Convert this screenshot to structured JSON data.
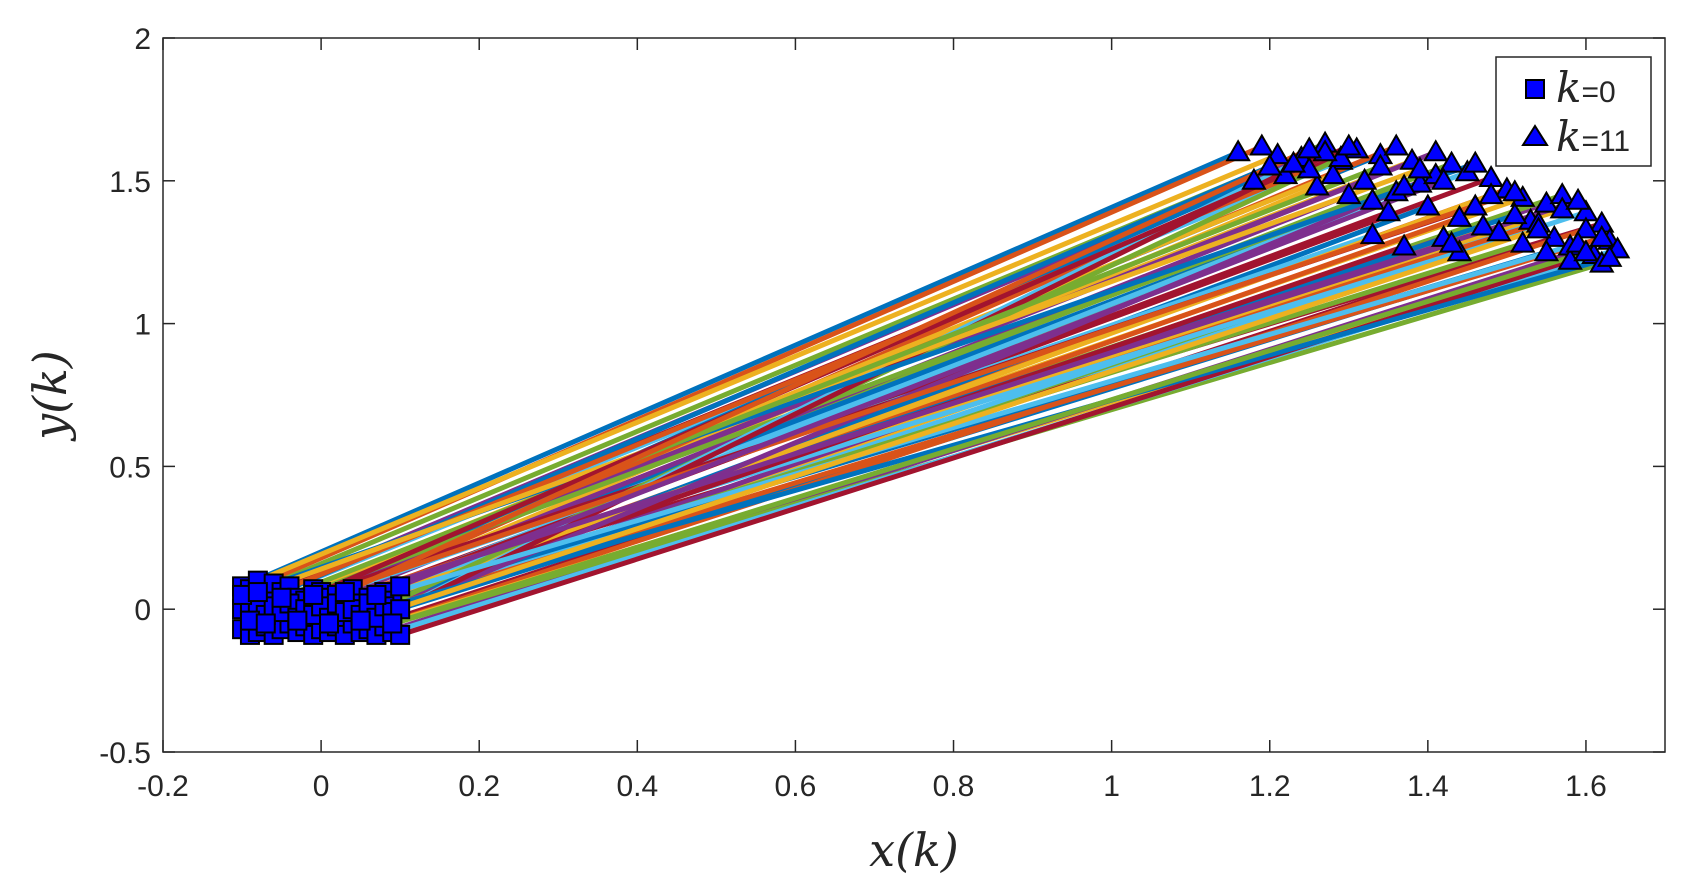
{
  "chart_data": {
    "type": "line",
    "title": "",
    "xlabel": "x(k)",
    "ylabel": "y(k)",
    "xlim": [
      -0.2,
      1.7
    ],
    "ylim": [
      -0.5,
      2
    ],
    "xticks": [
      "-0.2",
      "0",
      "0.2",
      "0.4",
      "0.6",
      "0.8",
      "1",
      "1.2",
      "1.4",
      "1.6"
    ],
    "yticks": [
      "-0.5",
      "0",
      "0.5",
      "1",
      "1.5",
      "2"
    ],
    "legend_position": "top-right",
    "legend": [
      {
        "marker": "square",
        "label_var": "k",
        "label_rest": "=0"
      },
      {
        "marker": "triangle",
        "label_var": "k",
        "label_rest": "=11"
      }
    ],
    "marker_color": "#0000ff",
    "series_colors": [
      "#0072bd",
      "#d95319",
      "#edb120",
      "#7e2f8e",
      "#77ac30",
      "#4dbeee",
      "#a2142f"
    ],
    "series": [
      {
        "start": [
          -0.1,
          0.08
        ],
        "end": [
          1.16,
          1.6
        ]
      },
      {
        "start": [
          -0.09,
          0.07
        ],
        "end": [
          1.19,
          1.62
        ]
      },
      {
        "start": [
          -0.08,
          0.1
        ],
        "end": [
          1.21,
          1.59
        ]
      },
      {
        "start": [
          -0.07,
          0.05
        ],
        "end": [
          1.24,
          1.58
        ]
      },
      {
        "start": [
          -0.06,
          0.09
        ],
        "end": [
          1.27,
          1.63
        ]
      },
      {
        "start": [
          -0.05,
          0.06
        ],
        "end": [
          1.29,
          1.57
        ]
      },
      {
        "start": [
          -0.04,
          0.08
        ],
        "end": [
          1.31,
          1.61
        ]
      },
      {
        "start": [
          -0.03,
          0.04
        ],
        "end": [
          1.34,
          1.59
        ]
      },
      {
        "start": [
          -0.02,
          0.03
        ],
        "end": [
          1.36,
          1.62
        ]
      },
      {
        "start": [
          -0.01,
          0.07
        ],
        "end": [
          1.38,
          1.57
        ]
      },
      {
        "start": [
          0.0,
          0.06
        ],
        "end": [
          1.41,
          1.6
        ]
      },
      {
        "start": [
          0.01,
          0.04
        ],
        "end": [
          1.43,
          1.56
        ]
      },
      {
        "start": [
          0.02,
          0.05
        ],
        "end": [
          1.45,
          1.53
        ]
      },
      {
        "start": [
          0.03,
          0.03
        ],
        "end": [
          1.48,
          1.51
        ]
      },
      {
        "start": [
          0.04,
          0.07
        ],
        "end": [
          1.39,
          1.49
        ]
      },
      {
        "start": [
          0.05,
          0.02
        ],
        "end": [
          1.5,
          1.47
        ]
      },
      {
        "start": [
          0.06,
          0.04
        ],
        "end": [
          1.52,
          1.44
        ]
      },
      {
        "start": [
          0.07,
          0.05
        ],
        "end": [
          1.55,
          1.42
        ]
      },
      {
        "start": [
          0.08,
          0.06
        ],
        "end": [
          1.57,
          1.45
        ]
      },
      {
        "start": [
          0.09,
          0.03
        ],
        "end": [
          1.6,
          1.39
        ]
      },
      {
        "start": [
          0.1,
          0.08
        ],
        "end": [
          1.62,
          1.35
        ]
      },
      {
        "start": [
          -0.1,
          -0.07
        ],
        "end": [
          1.18,
          1.5
        ]
      },
      {
        "start": [
          -0.09,
          -0.09
        ],
        "end": [
          1.22,
          1.52
        ]
      },
      {
        "start": [
          -0.08,
          -0.08
        ],
        "end": [
          1.26,
          1.48
        ]
      },
      {
        "start": [
          -0.07,
          -0.06
        ],
        "end": [
          1.3,
          1.45
        ]
      },
      {
        "start": [
          -0.06,
          -0.09
        ],
        "end": [
          1.33,
          1.43
        ]
      },
      {
        "start": [
          -0.05,
          -0.07
        ],
        "end": [
          1.36,
          1.46
        ]
      },
      {
        "start": [
          -0.04,
          -0.05
        ],
        "end": [
          1.35,
          1.39
        ]
      },
      {
        "start": [
          -0.03,
          -0.08
        ],
        "end": [
          1.4,
          1.41
        ]
      },
      {
        "start": [
          -0.02,
          -0.06
        ],
        "end": [
          1.44,
          1.37
        ]
      },
      {
        "start": [
          -0.01,
          -0.09
        ],
        "end": [
          1.47,
          1.34
        ]
      },
      {
        "start": [
          0.0,
          -0.07
        ],
        "end": [
          1.42,
          1.3
        ]
      },
      {
        "start": [
          0.01,
          -0.08
        ],
        "end": [
          1.49,
          1.32
        ]
      },
      {
        "start": [
          0.02,
          -0.06
        ],
        "end": [
          1.53,
          1.36
        ]
      },
      {
        "start": [
          0.03,
          -0.09
        ],
        "end": [
          1.56,
          1.3
        ]
      },
      {
        "start": [
          0.04,
          -0.05
        ],
        "end": [
          1.58,
          1.27
        ]
      },
      {
        "start": [
          0.05,
          -0.08
        ],
        "end": [
          1.6,
          1.33
        ]
      },
      {
        "start": [
          0.06,
          -0.07
        ],
        "end": [
          1.61,
          1.24
        ]
      },
      {
        "start": [
          0.07,
          -0.09
        ],
        "end": [
          1.63,
          1.29
        ]
      },
      {
        "start": [
          0.08,
          -0.06
        ],
        "end": [
          1.62,
          1.21
        ]
      },
      {
        "start": [
          0.09,
          -0.08
        ],
        "end": [
          1.64,
          1.26
        ]
      },
      {
        "start": [
          0.1,
          -0.09
        ],
        "end": [
          1.58,
          1.22
        ]
      },
      {
        "start": [
          -0.1,
          0.0
        ],
        "end": [
          1.2,
          1.55
        ]
      },
      {
        "start": [
          -0.09,
          0.02
        ],
        "end": [
          1.25,
          1.54
        ]
      },
      {
        "start": [
          -0.08,
          0.0
        ],
        "end": [
          1.28,
          1.52
        ]
      },
      {
        "start": [
          -0.07,
          -0.02
        ],
        "end": [
          1.32,
          1.5
        ]
      },
      {
        "start": [
          -0.06,
          0.01
        ],
        "end": [
          1.37,
          1.48
        ]
      },
      {
        "start": [
          -0.05,
          -0.01
        ],
        "end": [
          1.33,
          1.31
        ]
      },
      {
        "start": [
          -0.04,
          0.02
        ],
        "end": [
          1.46,
          1.41
        ]
      },
      {
        "start": [
          -0.03,
          -0.03
        ],
        "end": [
          1.51,
          1.38
        ]
      },
      {
        "start": [
          -0.02,
          0.0
        ],
        "end": [
          1.54,
          1.35
        ]
      },
      {
        "start": [
          -0.01,
          -0.02
        ],
        "end": [
          1.57,
          1.4
        ]
      },
      {
        "start": [
          0.0,
          0.01
        ],
        "end": [
          1.59,
          1.43
        ]
      },
      {
        "start": [
          0.01,
          -0.03
        ],
        "end": [
          1.52,
          1.28
        ]
      },
      {
        "start": [
          0.02,
          0.02
        ],
        "end": [
          1.44,
          1.25
        ]
      },
      {
        "start": [
          0.03,
          -0.01
        ],
        "end": [
          1.37,
          1.27
        ]
      },
      {
        "start": [
          0.04,
          0.0
        ],
        "end": [
          1.55,
          1.25
        ]
      },
      {
        "start": [
          0.05,
          -0.02
        ],
        "end": [
          1.62,
          1.3
        ]
      },
      {
        "start": [
          0.06,
          0.02
        ],
        "end": [
          1.48,
          1.45
        ]
      },
      {
        "start": [
          0.07,
          -0.03
        ],
        "end": [
          1.41,
          1.52
        ]
      },
      {
        "start": [
          0.08,
          0.01
        ],
        "end": [
          1.29,
          1.58
        ]
      },
      {
        "start": [
          0.09,
          -0.01
        ],
        "end": [
          1.23,
          1.56
        ]
      },
      {
        "start": [
          0.1,
          0.0
        ],
        "end": [
          1.27,
          1.6
        ]
      },
      {
        "start": [
          -0.1,
          0.05
        ],
        "end": [
          1.46,
          1.56
        ]
      },
      {
        "start": [
          -0.09,
          -0.04
        ],
        "end": [
          1.51,
          1.46
        ]
      },
      {
        "start": [
          -0.08,
          0.06
        ],
        "end": [
          1.39,
          1.54
        ]
      },
      {
        "start": [
          -0.07,
          -0.05
        ],
        "end": [
          1.43,
          1.28
        ]
      },
      {
        "start": [
          -0.05,
          0.04
        ],
        "end": [
          1.34,
          1.55
        ]
      },
      {
        "start": [
          -0.03,
          -0.04
        ],
        "end": [
          1.59,
          1.28
        ]
      },
      {
        "start": [
          -0.01,
          0.05
        ],
        "end": [
          1.3,
          1.62
        ]
      },
      {
        "start": [
          0.01,
          -0.05
        ],
        "end": [
          1.63,
          1.23
        ]
      },
      {
        "start": [
          0.03,
          0.06
        ],
        "end": [
          1.25,
          1.61
        ]
      },
      {
        "start": [
          0.05,
          -0.04
        ],
        "end": [
          1.54,
          1.33
        ]
      },
      {
        "start": [
          0.07,
          0.05
        ],
        "end": [
          1.42,
          1.5
        ]
      },
      {
        "start": [
          0.09,
          -0.05
        ],
        "end": [
          1.6,
          1.25
        ]
      }
    ]
  }
}
